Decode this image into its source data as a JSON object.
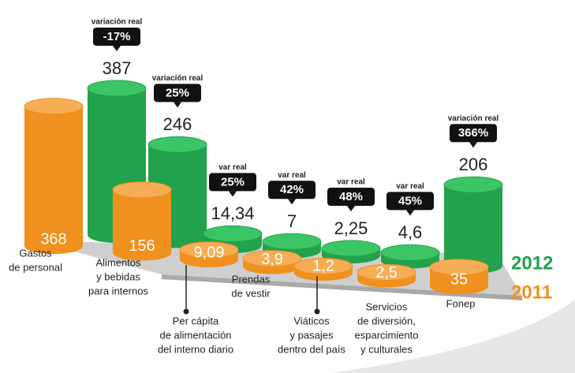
{
  "chart_data": {
    "type": "cylinder",
    "categories": [
      [
        "Gastos",
        "de personal"
      ],
      [
        "Alimentos",
        "y bebidas",
        "para internos"
      ],
      [
        "Per cápita",
        "de alimentación",
        "del interno diario"
      ],
      [
        "Prendas",
        "de vestir"
      ],
      [
        "Viáticos",
        "y pasajes",
        "dentro del país"
      ],
      [
        "Servicios",
        "de diversión,",
        "esparcimiento",
        "y culturales"
      ],
      [
        "Fonep"
      ]
    ],
    "series": [
      {
        "name": "2011",
        "color": "#f0901e",
        "values": [
          368,
          156,
          9.09,
          3.9,
          1.2,
          2.5,
          35
        ],
        "value_labels": [
          "368",
          "156",
          "9,09",
          "3,9",
          "1,2",
          "2,5",
          "35"
        ]
      },
      {
        "name": "2012",
        "color": "#22a24a",
        "values": [
          387,
          246,
          14.34,
          7,
          2.25,
          4.6,
          206
        ],
        "value_labels": [
          "387",
          "246",
          "14,34",
          "7",
          "2,25",
          "4,6",
          "206"
        ]
      }
    ],
    "change": {
      "labels": [
        "variación real",
        "variación real",
        "var real",
        "var real",
        "var real",
        "var real",
        "variación real"
      ],
      "values": [
        -17,
        25,
        25,
        42,
        48,
        45,
        366
      ],
      "value_labels": [
        "-17%",
        "25%",
        "25%",
        "42%",
        "48%",
        "45%",
        "366%"
      ]
    }
  }
}
